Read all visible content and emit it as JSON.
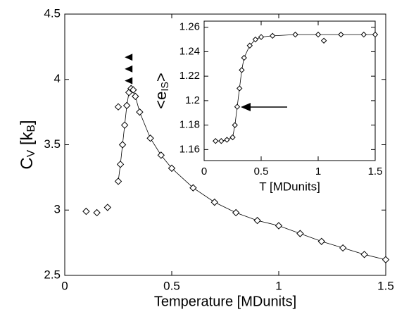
{
  "chart_data": [
    {
      "type": "scatter",
      "marker": "diamond",
      "color": "#000000",
      "xlabel": "Temperature [MDunits]",
      "ylabel": [
        "C",
        "V",
        " [k",
        "B",
        "]"
      ],
      "x": [
        0.1,
        0.15,
        0.2,
        0.25,
        0.25,
        0.26,
        0.27,
        0.28,
        0.29,
        0.3,
        0.31,
        0.32,
        0.33,
        0.35,
        0.4,
        0.45,
        0.5,
        0.6,
        0.7,
        0.8,
        0.9,
        1.0,
        1.1,
        1.2,
        1.3,
        1.4,
        1.5
      ],
      "values": [
        2.99,
        2.98,
        3.02,
        3.79,
        3.22,
        3.35,
        3.5,
        3.65,
        3.8,
        3.9,
        3.93,
        3.92,
        3.87,
        3.75,
        3.55,
        3.42,
        3.32,
        3.17,
        3.06,
        2.98,
        2.92,
        2.88,
        2.82,
        2.76,
        2.71,
        2.66,
        2.62
      ],
      "markers_x": [
        0.3,
        0.3,
        0.3
      ],
      "markers_y": [
        4.17,
        4.08,
        3.99
      ],
      "xlim": [
        0,
        1.5
      ],
      "ylim": [
        2.5,
        4.5
      ],
      "xticks": [
        0,
        0.5,
        1,
        1.5
      ],
      "yticks": [
        2.5,
        3,
        3.5,
        4,
        4.5
      ]
    },
    {
      "type": "scatter",
      "marker": "diamond",
      "color": "#000000",
      "xlabel": "T [MDunits]",
      "ylabel": [
        "<e",
        "IS",
        ">"
      ],
      "x": [
        0.1,
        0.15,
        0.2,
        0.25,
        0.27,
        0.29,
        0.31,
        0.33,
        0.35,
        0.4,
        0.45,
        0.5,
        0.6,
        0.8,
        1.0,
        1.05,
        1.2,
        1.4,
        1.5
      ],
      "values": [
        1.167,
        1.167,
        1.168,
        1.17,
        1.18,
        1.195,
        1.21,
        1.225,
        1.235,
        1.245,
        1.25,
        1.252,
        1.253,
        1.254,
        1.254,
        1.249,
        1.254,
        1.254,
        1.254
      ],
      "xlim": [
        0,
        1.5
      ],
      "ylim": [
        1.151,
        1.265
      ],
      "xticks": [
        0,
        0.5,
        1,
        1.5
      ],
      "yticks": [
        1.16,
        1.18,
        1.2,
        1.22,
        1.24,
        1.26
      ]
    }
  ]
}
